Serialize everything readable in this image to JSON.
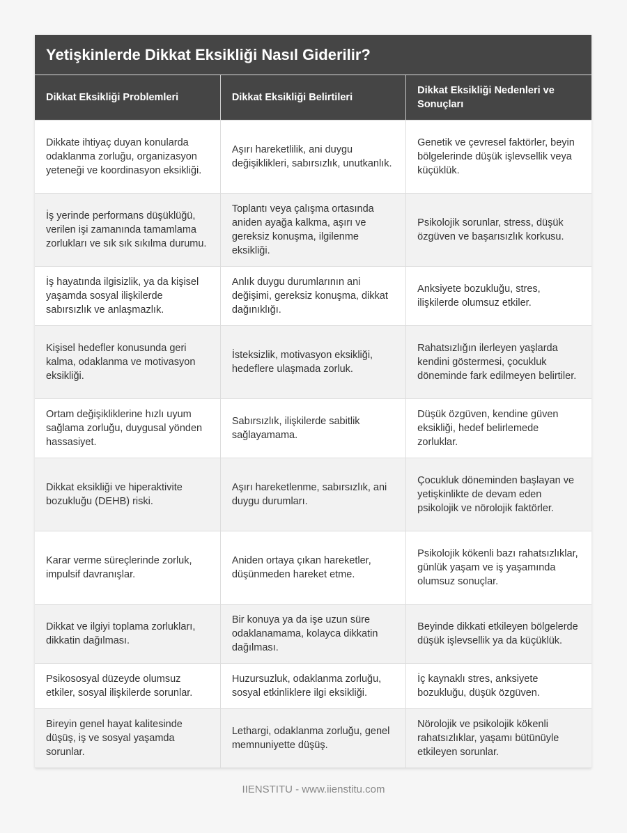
{
  "title": "Yetişkinlerde Dikkat Eksikliği Nasıl Giderilir?",
  "columns": [
    "Dikkat Eksikliği Problemleri",
    "Dikkat Eksikliği Belirtileri",
    "Dikkat Eksikliği Nedenleri ve Sonuçları"
  ],
  "rows": [
    [
      "Dikkate ihtiyaç duyan konularda odaklanma zorluğu, organizasyon yeteneği ve koordinasyon eksikliği.",
      "Aşırı hareketlilik, ani duygu değişiklikleri, sabırsızlık, unutkanlık.",
      "Genetik ve çevresel faktörler, beyin bölgelerinde düşük işlevsellik veya küçüklük."
    ],
    [
      "İş yerinde performans düşüklüğü, verilen işi zamanında tamamlama zorlukları ve sık sık sıkılma durumu.",
      "Toplantı veya çalışma ortasında aniden ayağa kalkma, aşırı ve gereksiz konuşma, ilgilenme eksikliği.",
      "Psikolojik sorunlar, stress, düşük özgüven ve başarısızlık korkusu."
    ],
    [
      "İş hayatında ilgisizlik, ya da kişisel yaşamda sosyal ilişkilerde sabırsızlık ve anlaşmazlık.",
      "Anlık duygu durumlarının ani değişimi, gereksiz konuşma, dikkat dağınıklığı.",
      "Anksiyete bozukluğu, stres, ilişkilerde olumsuz etkiler."
    ],
    [
      "Kişisel hedefler konusunda geri kalma, odaklanma ve motivasyon eksikliği.",
      "İsteksizlik, motivasyon eksikliği, hedeflere ulaşmada zorluk.",
      "Rahatsızlığın ilerleyen yaşlarda kendini göstermesi, çocukluk döneminde fark edilmeyen belirtiler."
    ],
    [
      "Ortam değişikliklerine hızlı uyum sağlama zorluğu, duygusal yönden hassasiyet.",
      "Sabırsızlık, ilişkilerde sabitlik sağlayamama.",
      "Düşük özgüven, kendine güven eksikliği, hedef belirlemede zorluklar."
    ],
    [
      "Dikkat eksikliği ve hiperaktivite bozukluğu (DEHB) riski.",
      "Aşırı hareketlenme, sabırsızlık, ani duygu durumları.",
      "Çocukluk döneminden başlayan ve yetişkinlikte de devam eden psikolojik ve nörolojik faktörler."
    ],
    [
      "Karar verme süreçlerinde zorluk, impulsif davranışlar.",
      "Aniden ortaya çıkan hareketler, düşünmeden hareket etme.",
      "Psikolojik kökenli bazı rahatsızlıklar, günlük yaşam ve iş yaşamında olumsuz sonuçlar."
    ],
    [
      "Dikkat ve ilgiyi toplama zorlukları, dikkatin dağılması.",
      "Bir konuya ya da işe uzun süre odaklanamama, kolayca dikkatin dağılması.",
      "Beyinde dikkati etkileyen bölgelerde düşük işlevsellik ya da küçüklük."
    ],
    [
      "Psikososyal düzeyde olumsuz etkiler, sosyal ilişkilerde sorunlar.",
      "Huzursuzluk, odaklanma zorluğu, sosyal etkinliklere ilgi eksikliği.",
      "İç kaynaklı stres, anksiyete bozukluğu, düşük özgüven."
    ],
    [
      "Bireyin genel hayat kalitesinde düşüş, iş ve sosyal yaşamda sorunlar.",
      "Lethargi, odaklanma zorluğu, genel memnuniyette düşüş.",
      "Nörolojik ve psikolojik kökenli rahatsızlıklar, yaşamı bütünüyle etkileyen sorunlar."
    ]
  ],
  "footer": "IIENSTITU - www.iienstitu.com"
}
